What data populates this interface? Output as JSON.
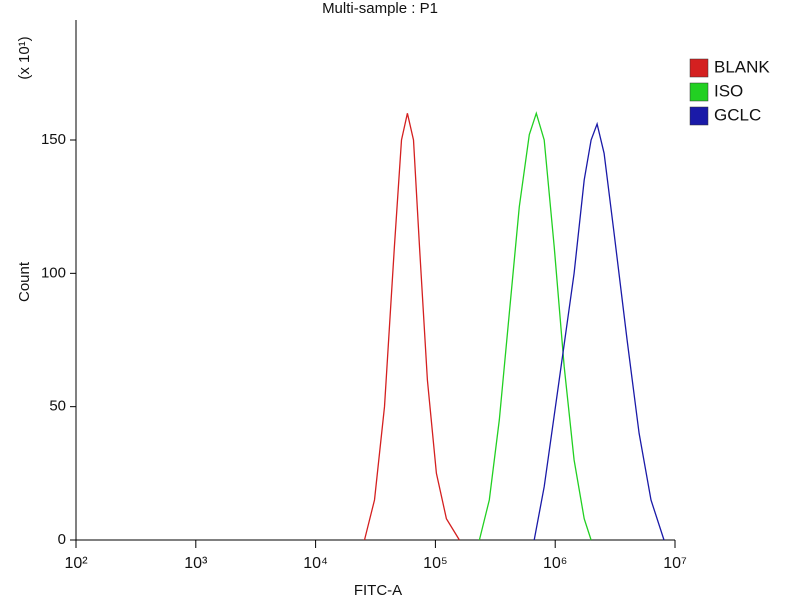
{
  "chart_data": {
    "type": "line",
    "title": "Multi-sample : P1",
    "x_label": "FITC-A",
    "y_label": "Count",
    "y_multiplier": "(x 10¹)",
    "xscale": "log",
    "xlim": [
      100,
      10000000
    ],
    "xticks": [
      {
        "value": 100,
        "label": "10²"
      },
      {
        "value": 1000,
        "label": "10³"
      },
      {
        "value": 10000,
        "label": "10⁴"
      },
      {
        "value": 100000,
        "label": "10⁵"
      },
      {
        "value": 1000000,
        "label": "10⁶"
      },
      {
        "value": 10000000,
        "label": "10⁷"
      }
    ],
    "ylim": [
      0,
      195
    ],
    "yticks": [
      0,
      50,
      100,
      150
    ],
    "legend": "right",
    "series": [
      {
        "name": "BLANK",
        "color": "#d42020",
        "x": [
          25600,
          31000,
          37600,
          45500,
          52100,
          58400,
          65600,
          73600,
          85800,
          101900,
          123500,
          158500
        ],
        "values": [
          0,
          15,
          50,
          110,
          150,
          160,
          150,
          110,
          60,
          25,
          8,
          0
        ]
      },
      {
        "name": "ISO",
        "color": "#22d022",
        "x": [
          232800,
          281800,
          341400,
          413800,
          501200,
          607400,
          695000,
          809700,
          981200,
          1188500,
          1439000,
          1745000,
          1995000
        ],
        "values": [
          0,
          15,
          45,
          85,
          125,
          152,
          160,
          150,
          110,
          65,
          30,
          8,
          0
        ]
      },
      {
        "name": "GCLC",
        "color": "#1a1aa8",
        "x": [
          668300,
          809700,
          1080000,
          1439000,
          1745000,
          1995000,
          2239000,
          2560000,
          3100000,
          3981000,
          5012000,
          6310000,
          8090000
        ],
        "values": [
          0,
          20,
          60,
          100,
          135,
          150,
          156,
          145,
          115,
          75,
          40,
          15,
          0
        ]
      }
    ]
  }
}
